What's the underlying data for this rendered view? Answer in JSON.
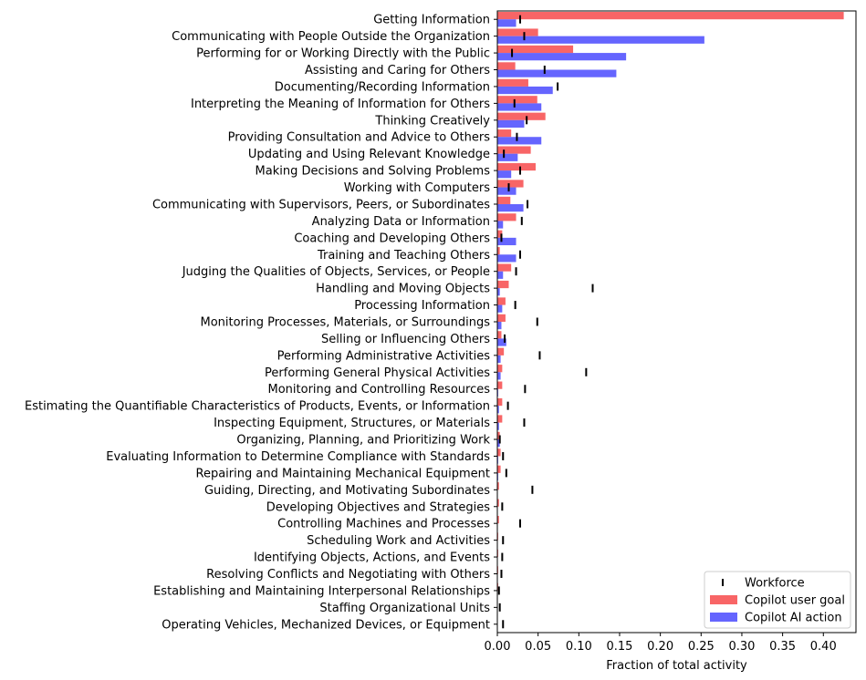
{
  "chart_data": {
    "type": "bar",
    "orientation": "horizontal",
    "xlabel": "Fraction of total activity",
    "xlim": [
      0,
      0.44
    ],
    "xticks": [
      "0.00",
      "0.05",
      "0.10",
      "0.15",
      "0.20",
      "0.25",
      "0.30",
      "0.35",
      "0.40"
    ],
    "legend_position": "bottom-right",
    "categories": [
      "Getting Information",
      "Communicating with People Outside the Organization",
      "Performing for or Working Directly with the Public",
      "Assisting and Caring for Others",
      "Documenting/Recording Information",
      "Interpreting the Meaning of Information for Others",
      "Thinking Creatively",
      "Providing Consultation and Advice to Others",
      "Updating and Using Relevant Knowledge",
      "Making Decisions and Solving Problems",
      "Working with Computers",
      "Communicating with Supervisors, Peers, or Subordinates",
      "Analyzing Data or Information",
      "Coaching and Developing Others",
      "Training and Teaching Others",
      "Judging the Qualities of Objects, Services, or People",
      "Handling and Moving Objects",
      "Processing Information",
      "Monitoring Processes, Materials, or Surroundings",
      "Selling or Influencing Others",
      "Performing Administrative Activities",
      "Performing General Physical Activities",
      "Monitoring and Controlling Resources",
      "Estimating the Quantifiable Characteristics of Products, Events, or Information",
      "Inspecting Equipment, Structures, or Materials",
      "Organizing, Planning, and Prioritizing Work",
      "Evaluating Information to Determine Compliance with Standards",
      "Repairing and Maintaining Mechanical Equipment",
      "Guiding, Directing, and Motivating Subordinates",
      "Developing Objectives and Strategies",
      "Controlling Machines and Processes",
      "Scheduling Work and Activities",
      "Identifying Objects, Actions, and Events",
      "Resolving Conflicts and Negotiating with Others",
      "Establishing and Maintaining Interpersonal Relationships",
      "Staffing Organizational Units",
      "Operating Vehicles, Mechanized Devices, or Equipment"
    ],
    "series": [
      {
        "name": "Copilot user goal",
        "color": "#f86566",
        "kind": "bar",
        "values": [
          0.425,
          0.05,
          0.093,
          0.022,
          0.038,
          0.049,
          0.059,
          0.017,
          0.041,
          0.047,
          0.032,
          0.016,
          0.023,
          0.006,
          0.003,
          0.017,
          0.014,
          0.01,
          0.01,
          0.005,
          0.008,
          0.006,
          0.006,
          0.006,
          0.006,
          0.003,
          0.004,
          0.004,
          0.002,
          0.002,
          0.002,
          0.001,
          0.001,
          0.001,
          0.001,
          0.0005,
          0.0005
        ]
      },
      {
        "name": "Copilot AI action",
        "color": "#6565fe",
        "kind": "bar",
        "values": [
          0.023,
          0.254,
          0.158,
          0.146,
          0.068,
          0.054,
          0.033,
          0.054,
          0.025,
          0.017,
          0.023,
          0.032,
          0.007,
          0.023,
          0.023,
          0.007,
          0.003,
          0.006,
          0.005,
          0.011,
          0.004,
          0.004,
          0.001,
          0.002,
          0.002,
          0.003,
          0.001,
          0.001,
          0.0005,
          0.0005,
          0.0005,
          0.0005,
          0.0005,
          0.0005,
          0.0005,
          0.0005,
          0.0005
        ]
      },
      {
        "name": "Workforce",
        "color": "#000000",
        "kind": "marker",
        "values": [
          0.028,
          0.033,
          0.018,
          0.058,
          0.074,
          0.021,
          0.036,
          0.024,
          0.008,
          0.028,
          0.014,
          0.037,
          0.03,
          0.005,
          0.028,
          0.023,
          0.117,
          0.022,
          0.049,
          0.009,
          0.052,
          0.109,
          0.034,
          0.013,
          0.033,
          0.003,
          0.007,
          0.011,
          0.043,
          0.006,
          0.028,
          0.007,
          0.006,
          0.005,
          0.002,
          0.003,
          0.007
        ]
      }
    ],
    "legend": [
      "Workforce",
      "Copilot user goal",
      "Copilot AI action"
    ]
  }
}
